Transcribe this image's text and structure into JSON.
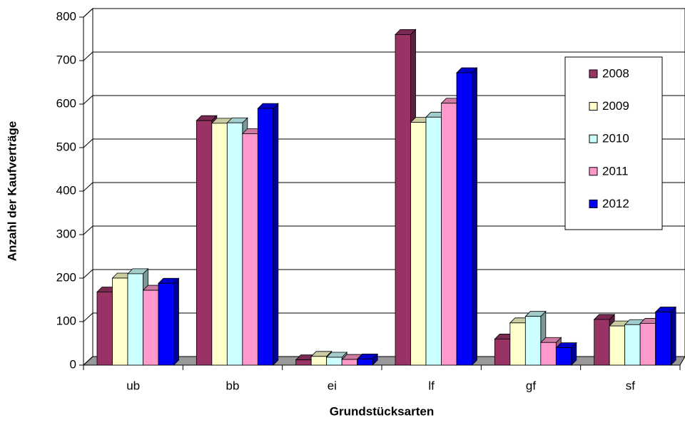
{
  "chart_data": {
    "type": "bar3d",
    "xlabel": "Grundstücksarten",
    "ylabel": "Anzahl der Kaufverträge",
    "categories": [
      "ub",
      "bb",
      "ei",
      "lf",
      "gf",
      "sf"
    ],
    "series": [
      {
        "name": "2008",
        "color": "#993366",
        "values": [
          168,
          562,
          12,
          760,
          60,
          105
        ]
      },
      {
        "name": "2009",
        "color": "#FFFFCC",
        "values": [
          200,
          556,
          20,
          558,
          97,
          90
        ]
      },
      {
        "name": "2010",
        "color": "#CCFFFF",
        "values": [
          210,
          557,
          18,
          570,
          112,
          93
        ]
      },
      {
        "name": "2011",
        "color": "#FF99CC",
        "values": [
          172,
          532,
          13,
          602,
          52,
          96
        ]
      },
      {
        "name": "2012",
        "color": "#0000FF",
        "values": [
          188,
          590,
          14,
          672,
          40,
          122
        ]
      }
    ],
    "ylim": [
      0,
      800
    ],
    "yticks": [
      0,
      100,
      200,
      300,
      400,
      500,
      600,
      700,
      800
    ],
    "grid": true,
    "legend": "upper right"
  }
}
